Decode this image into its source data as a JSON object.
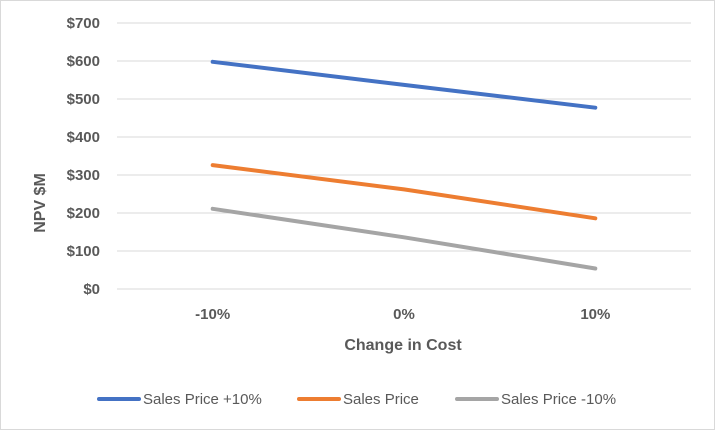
{
  "chart_data": {
    "type": "line",
    "title": "",
    "xlabel": "Change in Cost",
    "ylabel": "NPV $M",
    "categories": [
      "-10%",
      "0%",
      "10%"
    ],
    "ylim": [
      0,
      700
    ],
    "yticks": [
      "$0",
      "$100",
      "$200",
      "$300",
      "$400",
      "$500",
      "$600",
      "$700"
    ],
    "grid": true,
    "legend_position": "bottom",
    "series": [
      {
        "name": "Sales Price +10%",
        "values": [
          598,
          537,
          477
        ],
        "color": "#4472c4"
      },
      {
        "name": "Sales Price",
        "values": [
          326,
          262,
          186
        ],
        "color": "#ed7d31"
      },
      {
        "name": "Sales Price -10%",
        "values": [
          211,
          136,
          54
        ],
        "color": "#a5a5a5"
      }
    ]
  }
}
